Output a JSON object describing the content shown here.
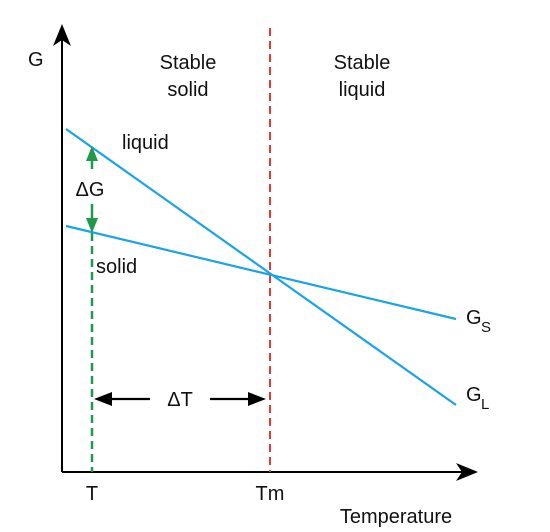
{
  "axes": {
    "y_label": "G",
    "x_label": "Temperature",
    "x_ticks": {
      "t": "T",
      "tm": "Tm"
    }
  },
  "regions": {
    "solid": [
      "Stable",
      "solid"
    ],
    "liquid": [
      "Stable",
      "liquid"
    ]
  },
  "lines": {
    "liquid_label": "liquid",
    "solid_label": "solid",
    "gs": {
      "main": "G",
      "subscript": "S"
    },
    "gl": {
      "main": "G",
      "subscript": "L"
    }
  },
  "annotations": {
    "delta_g": "ΔG",
    "delta_t": "ΔT"
  },
  "colors": {
    "axis": "#000000",
    "free_energy_lines": "#1aa3e8",
    "melting_line": "#e53935",
    "undercooling_line": "#1f9a4b"
  }
}
